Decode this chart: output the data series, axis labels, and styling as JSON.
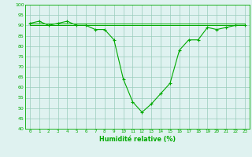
{
  "x": [
    0,
    1,
    2,
    3,
    4,
    5,
    6,
    7,
    8,
    9,
    10,
    11,
    12,
    13,
    14,
    15,
    16,
    17,
    18,
    19,
    20,
    21,
    22,
    23
  ],
  "y_main": [
    91,
    92,
    90,
    91,
    92,
    90,
    90,
    88,
    88,
    83,
    64,
    53,
    48,
    52,
    57,
    62,
    78,
    83,
    83,
    89,
    88,
    89,
    90,
    90
  ],
  "y_flat1": [
    91,
    91,
    91,
    91,
    91,
    91,
    91,
    91,
    91,
    91,
    91,
    91,
    91,
    91,
    91,
    91,
    91,
    91,
    91,
    91,
    91,
    91,
    91,
    91
  ],
  "y_flat2": [
    90,
    90,
    90,
    90,
    90,
    90,
    90,
    90,
    90,
    90,
    90,
    90,
    90,
    90,
    90,
    90,
    90,
    90,
    90,
    90,
    90,
    90,
    90,
    90
  ],
  "line_color": "#00aa00",
  "bg_color": "#dff2f0",
  "grid_color": "#99ccbb",
  "xlabel": "Humidité relative (%)",
  "ylim": [
    40,
    100
  ],
  "xlim": [
    -0.5,
    23.5
  ],
  "yticks": [
    40,
    45,
    50,
    55,
    60,
    65,
    70,
    75,
    80,
    85,
    90,
    95,
    100
  ],
  "xtick_labels": [
    "0",
    "1",
    "2",
    "3",
    "4",
    "5",
    "6",
    "7",
    "8",
    "9",
    "10",
    "11",
    "12",
    "13",
    "14",
    "15",
    "16",
    "17",
    "18",
    "19",
    "20",
    "21",
    "22",
    "23"
  ]
}
